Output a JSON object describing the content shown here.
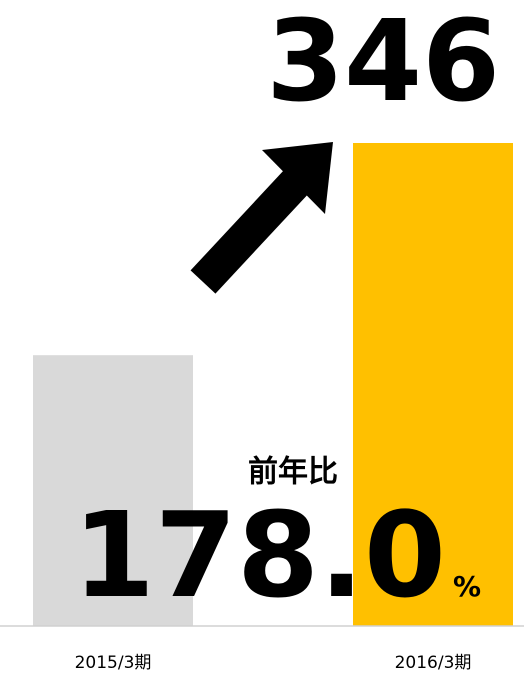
{
  "chart_data": {
    "type": "bar",
    "categories": [
      "2015/3期",
      "2016/3期"
    ],
    "values": [
      194,
      346
    ],
    "value_labels": [
      null,
      "346"
    ],
    "colors": [
      "#d9d9d9",
      "#ffc000"
    ],
    "ylim": [
      0,
      346
    ],
    "annotation": {
      "label": "前年比",
      "value": "178.0",
      "unit": "%"
    }
  }
}
